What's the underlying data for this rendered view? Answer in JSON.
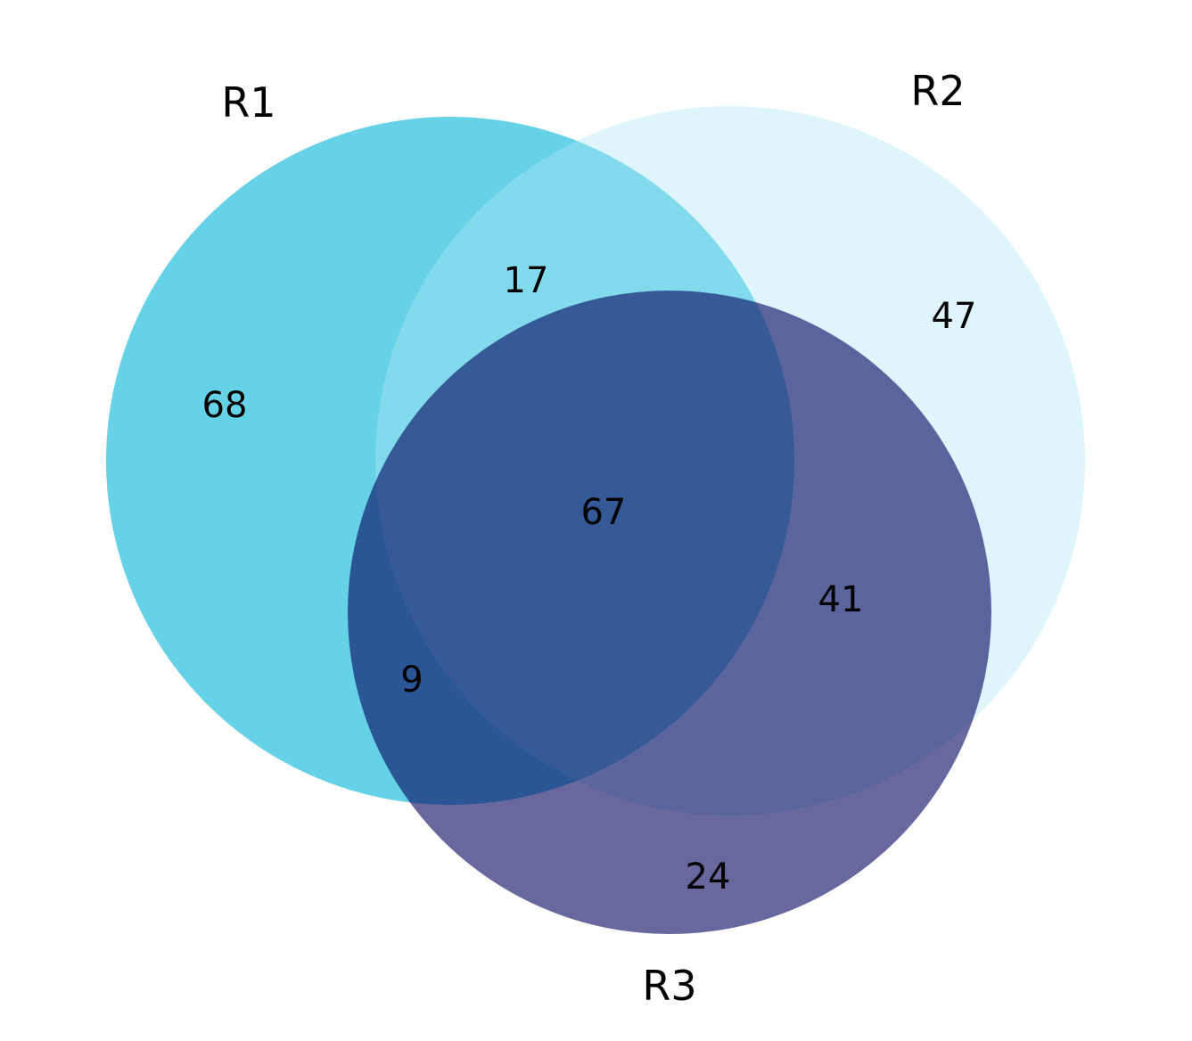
{
  "sets": [
    {
      "id": "r1",
      "label": "R1",
      "color": "#00B4D8",
      "opacity": 0.6
    },
    {
      "id": "r2",
      "label": "R2",
      "color": "#ADE8F4",
      "opacity": 0.4
    },
    {
      "id": "r3",
      "label": "R3",
      "color": "#03045E",
      "opacity": 0.6
    }
  ],
  "regions": {
    "r1_only": "68",
    "r2_only": "47",
    "r3_only": "24",
    "r1_r2": "17",
    "r1_r3": "9",
    "r2_r3": "41",
    "r1_r2_r3": "67"
  },
  "background": "#FFFFFF"
}
